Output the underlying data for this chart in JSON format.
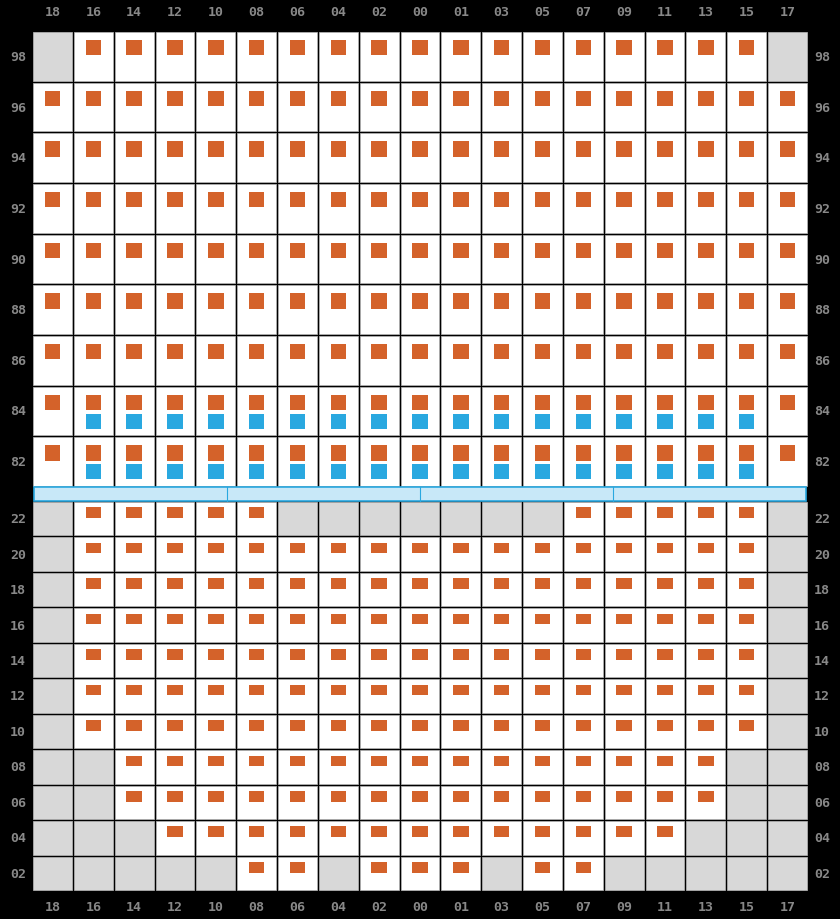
{
  "col_labels": [
    "18",
    "16",
    "14",
    "12",
    "10",
    "08",
    "06",
    "04",
    "02",
    "00",
    "01",
    "03",
    "05",
    "07",
    "09",
    "11",
    "13",
    "15",
    "17"
  ],
  "row_labels_upper": [
    "98",
    "96",
    "94",
    "92",
    "90",
    "88",
    "86",
    "84",
    "82"
  ],
  "row_labels_lower": [
    "22",
    "20",
    "18",
    "16",
    "14",
    "12",
    "10",
    "08",
    "06",
    "04",
    "02"
  ],
  "bg_color": "#000000",
  "cell_bg": "#ffffff",
  "gray_cell": "#d8d8d8",
  "outer_gray": "#c8c8c8",
  "orange_color": "#d4622a",
  "blue_color": "#29a8e0",
  "sep_fill": "#c8e8f8",
  "sep_edge": "#29a8e0",
  "label_color": "#888888",
  "grid_line": "#bbbbbb",
  "n_cols": 19,
  "upper_grid": {
    "98": [
      0,
      1,
      1,
      1,
      1,
      1,
      1,
      1,
      1,
      1,
      1,
      1,
      1,
      1,
      1,
      1,
      1,
      1,
      0
    ],
    "96": [
      1,
      1,
      1,
      1,
      1,
      1,
      1,
      1,
      1,
      1,
      1,
      1,
      1,
      1,
      1,
      1,
      1,
      1,
      1
    ],
    "94": [
      1,
      1,
      1,
      1,
      1,
      1,
      1,
      1,
      1,
      1,
      1,
      1,
      1,
      1,
      1,
      1,
      1,
      1,
      1
    ],
    "92": [
      1,
      1,
      1,
      1,
      1,
      1,
      1,
      1,
      1,
      1,
      1,
      1,
      1,
      1,
      1,
      1,
      1,
      1,
      1
    ],
    "90": [
      1,
      1,
      1,
      1,
      1,
      1,
      1,
      1,
      1,
      1,
      1,
      1,
      1,
      1,
      1,
      1,
      1,
      1,
      1
    ],
    "88": [
      1,
      1,
      1,
      1,
      1,
      1,
      1,
      1,
      1,
      1,
      1,
      1,
      1,
      1,
      1,
      1,
      1,
      1,
      1
    ],
    "86": [
      1,
      1,
      1,
      1,
      1,
      1,
      1,
      1,
      1,
      1,
      1,
      1,
      1,
      1,
      1,
      1,
      1,
      1,
      1
    ],
    "84": [
      1,
      1,
      1,
      1,
      1,
      1,
      1,
      1,
      1,
      1,
      1,
      1,
      1,
      1,
      1,
      1,
      1,
      1,
      1
    ],
    "82": [
      1,
      1,
      1,
      1,
      1,
      1,
      1,
      1,
      1,
      1,
      1,
      1,
      1,
      1,
      1,
      1,
      1,
      1,
      1
    ]
  },
  "upper_orange": {
    "98": [
      0,
      1,
      1,
      1,
      1,
      1,
      1,
      1,
      1,
      1,
      1,
      1,
      1,
      1,
      1,
      1,
      1,
      1,
      0
    ],
    "96": [
      1,
      1,
      1,
      1,
      1,
      1,
      1,
      1,
      1,
      1,
      1,
      1,
      1,
      1,
      1,
      1,
      1,
      1,
      1
    ],
    "94": [
      1,
      1,
      1,
      1,
      1,
      1,
      1,
      1,
      1,
      1,
      1,
      1,
      1,
      1,
      1,
      1,
      1,
      1,
      1
    ],
    "92": [
      1,
      1,
      1,
      1,
      1,
      1,
      1,
      1,
      1,
      1,
      1,
      1,
      1,
      1,
      1,
      1,
      1,
      1,
      1
    ],
    "90": [
      1,
      1,
      1,
      1,
      1,
      1,
      1,
      1,
      1,
      1,
      1,
      1,
      1,
      1,
      1,
      1,
      1,
      1,
      1
    ],
    "88": [
      1,
      1,
      1,
      1,
      1,
      1,
      1,
      1,
      1,
      1,
      1,
      1,
      1,
      1,
      1,
      1,
      1,
      1,
      1
    ],
    "86": [
      1,
      1,
      1,
      1,
      1,
      1,
      1,
      1,
      1,
      1,
      1,
      1,
      1,
      1,
      1,
      1,
      1,
      1,
      1
    ],
    "84": [
      1,
      1,
      1,
      1,
      1,
      1,
      1,
      1,
      1,
      1,
      1,
      1,
      1,
      1,
      1,
      1,
      1,
      1,
      1
    ],
    "82": [
      1,
      1,
      1,
      1,
      1,
      1,
      1,
      1,
      1,
      1,
      1,
      1,
      1,
      1,
      1,
      1,
      1,
      1,
      1
    ]
  },
  "upper_blue": {
    "84": [
      0,
      1,
      1,
      1,
      1,
      1,
      1,
      1,
      1,
      1,
      1,
      1,
      1,
      1,
      1,
      1,
      1,
      1,
      0
    ],
    "82": [
      0,
      1,
      1,
      1,
      1,
      1,
      1,
      1,
      1,
      1,
      1,
      1,
      1,
      1,
      1,
      1,
      1,
      1,
      0
    ]
  },
  "lower_grid": {
    "22": [
      0,
      1,
      1,
      1,
      1,
      1,
      0,
      0,
      0,
      0,
      0,
      0,
      0,
      1,
      1,
      1,
      1,
      1,
      0
    ],
    "20": [
      0,
      1,
      1,
      1,
      1,
      1,
      1,
      1,
      1,
      1,
      1,
      1,
      1,
      1,
      1,
      1,
      1,
      1,
      0
    ],
    "18": [
      0,
      1,
      1,
      1,
      1,
      1,
      1,
      1,
      1,
      1,
      1,
      1,
      1,
      1,
      1,
      1,
      1,
      1,
      0
    ],
    "16": [
      0,
      1,
      1,
      1,
      1,
      1,
      1,
      1,
      1,
      1,
      1,
      1,
      1,
      1,
      1,
      1,
      1,
      1,
      0
    ],
    "14": [
      0,
      1,
      1,
      1,
      1,
      1,
      1,
      1,
      1,
      1,
      1,
      1,
      1,
      1,
      1,
      1,
      1,
      1,
      0
    ],
    "12": [
      0,
      1,
      1,
      1,
      1,
      1,
      1,
      1,
      1,
      1,
      1,
      1,
      1,
      1,
      1,
      1,
      1,
      1,
      0
    ],
    "10": [
      0,
      1,
      1,
      1,
      1,
      1,
      1,
      1,
      1,
      1,
      1,
      1,
      1,
      1,
      1,
      1,
      1,
      1,
      0
    ],
    "08": [
      0,
      0,
      1,
      1,
      1,
      1,
      1,
      1,
      1,
      1,
      1,
      1,
      1,
      1,
      1,
      1,
      1,
      0,
      0
    ],
    "06": [
      0,
      0,
      1,
      1,
      1,
      1,
      1,
      1,
      1,
      1,
      1,
      1,
      1,
      1,
      1,
      1,
      1,
      0,
      0
    ],
    "04": [
      0,
      0,
      0,
      1,
      1,
      1,
      1,
      1,
      1,
      1,
      1,
      1,
      1,
      1,
      1,
      1,
      0,
      0,
      0
    ],
    "02": [
      0,
      0,
      0,
      0,
      0,
      1,
      1,
      0,
      1,
      1,
      1,
      0,
      1,
      1,
      0,
      0,
      0,
      0,
      0
    ]
  }
}
